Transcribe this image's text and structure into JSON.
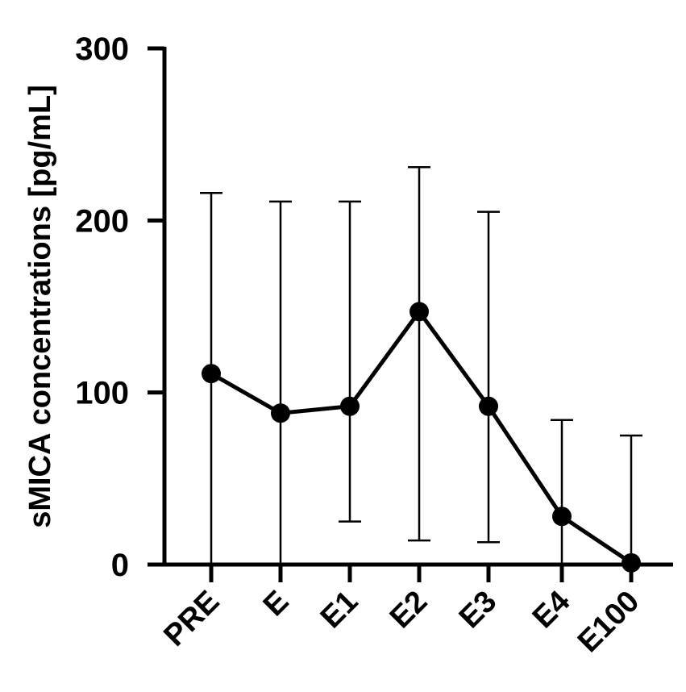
{
  "chart_data": {
    "type": "line",
    "title": "",
    "xlabel": "",
    "ylabel": "sMICA concentrations [pg/mL]",
    "ylim": [
      0,
      300
    ],
    "yticks": [
      0,
      100,
      200,
      300
    ],
    "categories": [
      "PRE",
      "E",
      "E1",
      "E2",
      "E3",
      "E4",
      "E100"
    ],
    "series": [
      {
        "values": [
          111,
          88,
          92,
          147,
          92,
          28,
          1
        ],
        "error_upper": [
          216,
          211,
          211,
          231,
          205,
          84,
          75
        ],
        "error_lower": [
          0,
          0,
          25,
          14,
          13,
          0,
          0
        ]
      }
    ],
    "colors": {
      "line": "#000000",
      "marker": "#000000"
    },
    "grid": false,
    "legend": "none"
  }
}
